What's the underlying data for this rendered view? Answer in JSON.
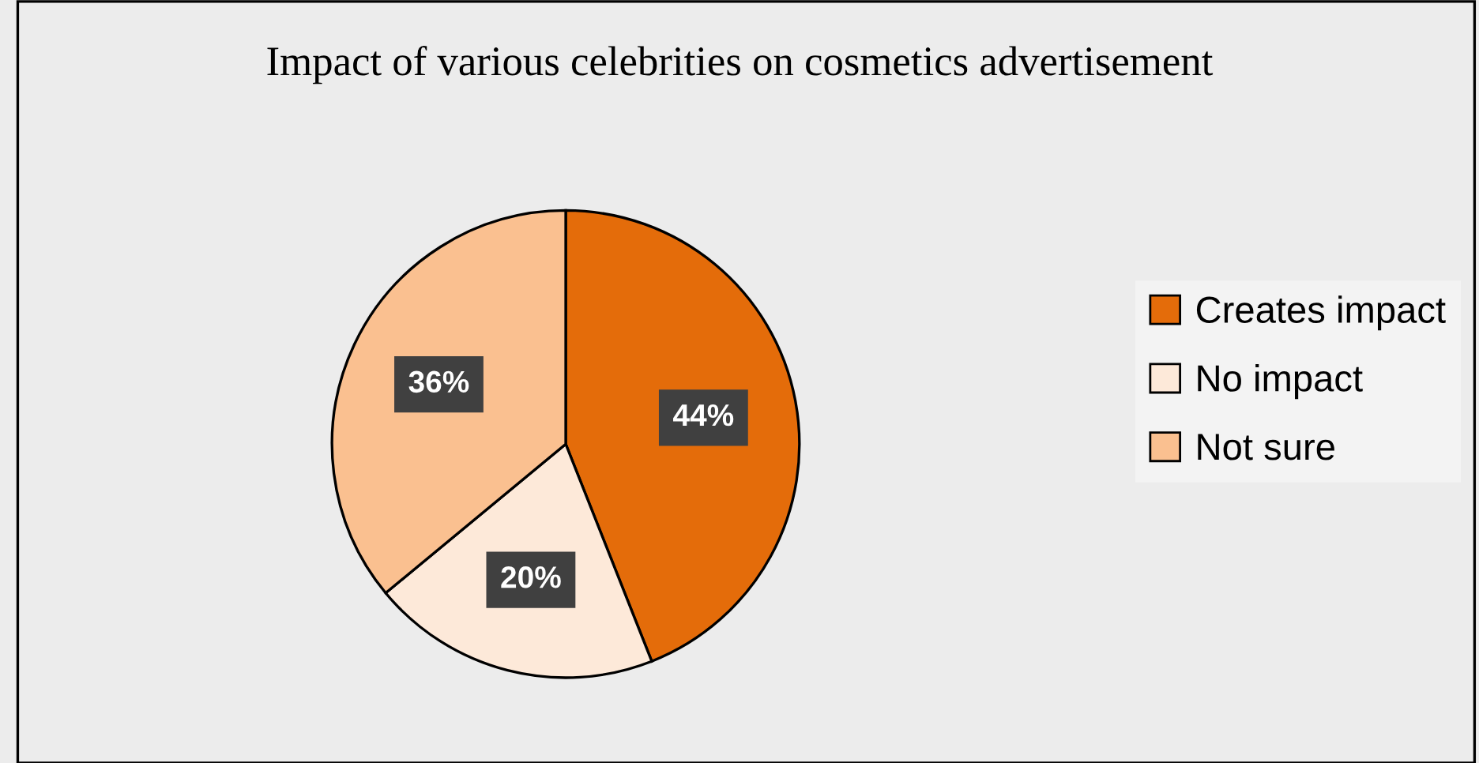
{
  "chart_data": {
    "type": "pie",
    "title": "Impact of various celebrities on cosmetics advertisement",
    "categories": [
      "Creates impact",
      "No impact",
      "Not sure"
    ],
    "values": [
      44,
      20,
      36
    ],
    "colors": [
      "#e46c0a",
      "#fde9d9",
      "#fac090"
    ],
    "value_labels": [
      "44%",
      "20%",
      "36%"
    ],
    "legend": "right"
  }
}
